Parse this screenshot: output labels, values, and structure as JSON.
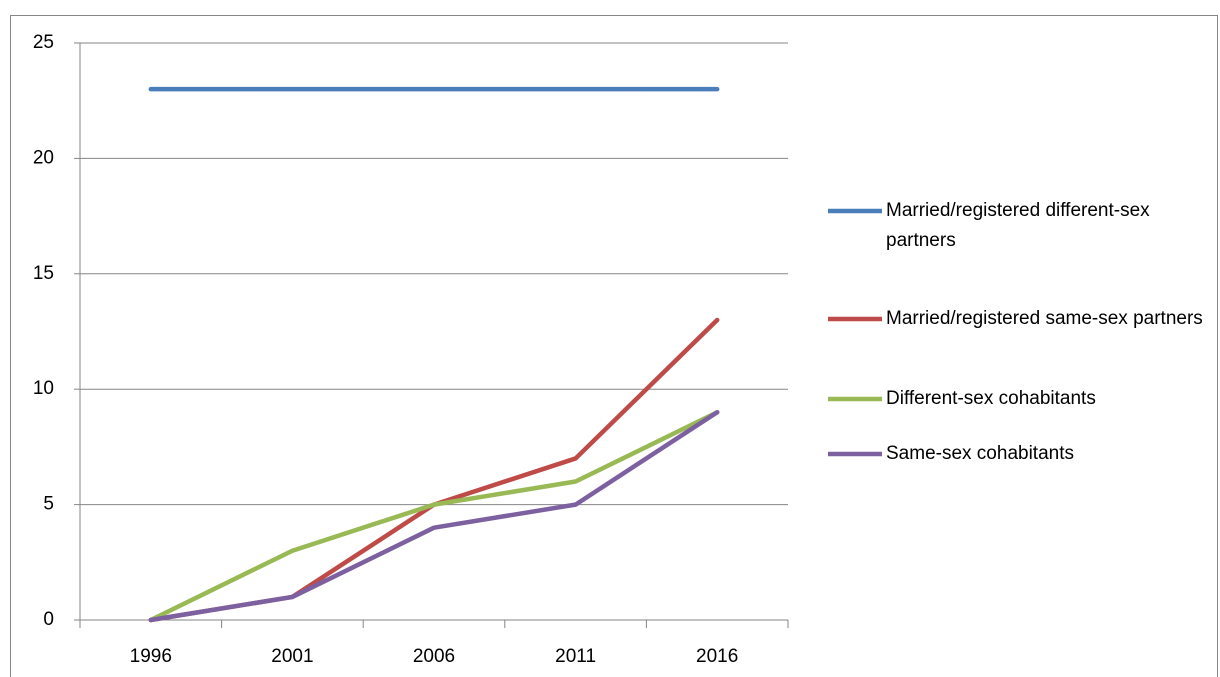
{
  "chart_data": {
    "type": "line",
    "categories": [
      "1996",
      "2001",
      "2006",
      "2011",
      "2016"
    ],
    "series": [
      {
        "name": "Married/registered different-sex partners",
        "color": "#4a7ebb",
        "values": [
          23,
          23,
          23,
          23,
          23
        ]
      },
      {
        "name": "Married/registered same-sex partners",
        "color": "#be4b48",
        "values": [
          0,
          1,
          5,
          7,
          13
        ]
      },
      {
        "name": "Different-sex cohabitants",
        "color": "#98b954",
        "values": [
          0,
          3,
          5,
          6,
          9
        ]
      },
      {
        "name": "Same-sex cohabitants",
        "color": "#7d60a0",
        "values": [
          0,
          1,
          4,
          5,
          9
        ]
      }
    ],
    "ylim": [
      0,
      25
    ],
    "yticks": [
      0,
      5,
      10,
      15,
      20,
      25
    ],
    "grid": true,
    "legend": "right"
  }
}
